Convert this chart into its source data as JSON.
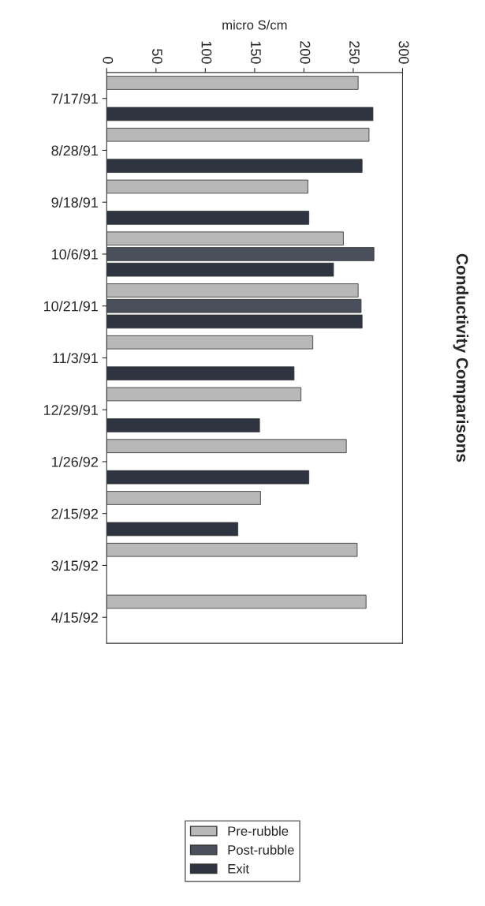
{
  "chart_data": {
    "type": "bar",
    "orientation": "horizontal",
    "title": "Conductivity Comparisons",
    "xlabel": "micro S/cm",
    "categories": [
      "7/17/91",
      "8/28/91",
      "9/18/91",
      "10/6/91",
      "10/21/91",
      "11/3/91",
      "12/29/91",
      "1/26/92",
      "2/15/92",
      "3/15/92",
      "4/15/92"
    ],
    "series": [
      {
        "name": "Pre-rubble",
        "color": "#b8b8b8",
        "values": [
          255,
          266,
          204,
          240,
          255,
          209,
          197,
          243,
          156,
          254,
          263
        ]
      },
      {
        "name": "Post-rubble",
        "color": "#4a4f5c",
        "values": [
          null,
          null,
          null,
          271,
          258,
          null,
          null,
          null,
          null,
          null,
          null
        ]
      },
      {
        "name": "Exit",
        "color": "#2f3441",
        "values": [
          270,
          259,
          205,
          230,
          259,
          190,
          155,
          205,
          133,
          null,
          null
        ]
      }
    ],
    "xlim": [
      0,
      300
    ],
    "xticks": [
      0,
      50,
      100,
      150,
      200,
      250,
      300
    ],
    "grid": false,
    "legend": "bottom"
  }
}
